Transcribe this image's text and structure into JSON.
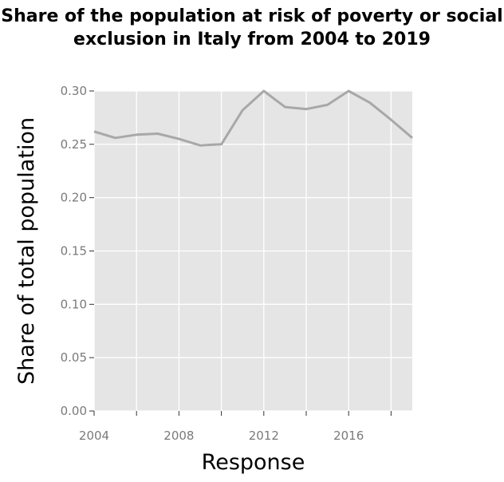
{
  "chart_data": {
    "type": "line",
    "title": "Share of the population at risk of poverty or social exclusion in Italy from 2004 to 2019",
    "xlabel": "Response",
    "ylabel": "Share of total population",
    "xlim": [
      2004,
      2019
    ],
    "ylim": [
      0,
      0.3
    ],
    "x_ticks": [
      2004,
      2008,
      2012,
      2016
    ],
    "x_tick_labels": [
      "2004",
      "2008",
      "2012",
      "2016"
    ],
    "y_ticks": [
      0,
      0.05,
      0.1,
      0.15,
      0.2,
      0.25,
      0.3
    ],
    "y_tick_labels": [
      "0.00",
      "0.05",
      "0.10",
      "0.15",
      "0.20",
      "0.25",
      "0.30"
    ],
    "grid": true,
    "series": [
      {
        "x": [
          2004,
          2005,
          2006,
          2007,
          2008,
          2009,
          2010,
          2011,
          2012,
          2013,
          2014,
          2015,
          2016,
          2017,
          2018,
          2019
        ],
        "values": [
          0.262,
          0.256,
          0.259,
          0.26,
          0.255,
          0.249,
          0.25,
          0.282,
          0.3,
          0.285,
          0.283,
          0.287,
          0.3,
          0.289,
          0.273,
          0.256
        ]
      }
    ],
    "colors": {
      "panel": "#e5e5e5",
      "grid": "#ffffff",
      "line": "#a8a8a8",
      "tick": "#7a7a7a"
    }
  }
}
